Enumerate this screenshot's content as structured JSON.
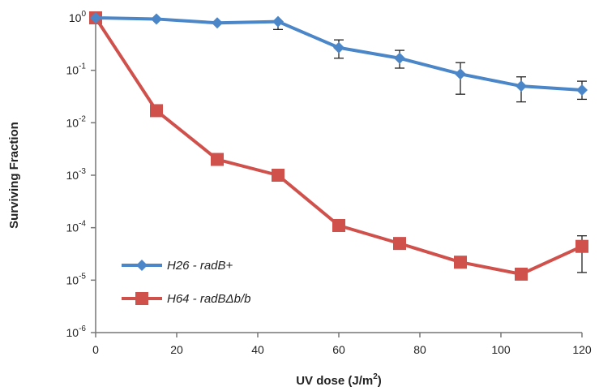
{
  "chart_data": {
    "type": "line",
    "xlabel": "UV dose (J/m2)",
    "xlabel_parts": {
      "base": "UV dose (J/m",
      "sup": "2",
      "tail": ")"
    },
    "ylabel": "Surviving Fraction",
    "xlim": [
      0,
      120
    ],
    "ylim": [
      1e-06,
      1
    ],
    "yscale": "log",
    "x_ticks": [
      0,
      20,
      40,
      60,
      80,
      100,
      120
    ],
    "y_ticks": [
      {
        "base": "10",
        "exp": "0"
      },
      {
        "base": "10",
        "exp": "-1"
      },
      {
        "base": "10",
        "exp": "-2"
      },
      {
        "base": "10",
        "exp": "-3"
      },
      {
        "base": "10",
        "exp": "-4"
      },
      {
        "base": "10",
        "exp": "-5"
      },
      {
        "base": "10",
        "exp": "-6"
      }
    ],
    "grid": false,
    "legend_position": "bottom-left",
    "series": [
      {
        "name": "H26 - radB+",
        "color": "#4a86c8",
        "marker": "diamond",
        "x": [
          0,
          15,
          30,
          45,
          60,
          75,
          90,
          105,
          120
        ],
        "y": [
          1.0,
          0.95,
          0.8,
          0.85,
          0.27,
          0.17,
          0.085,
          0.05,
          0.042
        ],
        "error_low": [
          null,
          null,
          null,
          0.6,
          0.17,
          0.11,
          0.035,
          0.025,
          0.028
        ],
        "error_high": [
          null,
          null,
          null,
          null,
          0.38,
          0.24,
          0.14,
          0.075,
          0.062
        ]
      },
      {
        "name": "H64 - radBΔb/b",
        "color": "#d0504c",
        "marker": "square",
        "x": [
          0,
          15,
          30,
          45,
          60,
          75,
          90,
          105,
          120
        ],
        "y": [
          1.0,
          0.017,
          0.002,
          0.001,
          0.00011,
          5e-05,
          2.2e-05,
          1.3e-05,
          4.4e-05
        ],
        "error_low": [
          null,
          null,
          null,
          null,
          null,
          null,
          null,
          null,
          1.4e-05
        ],
        "error_high": [
          null,
          null,
          null,
          null,
          null,
          null,
          null,
          null,
          7e-05
        ]
      }
    ]
  }
}
